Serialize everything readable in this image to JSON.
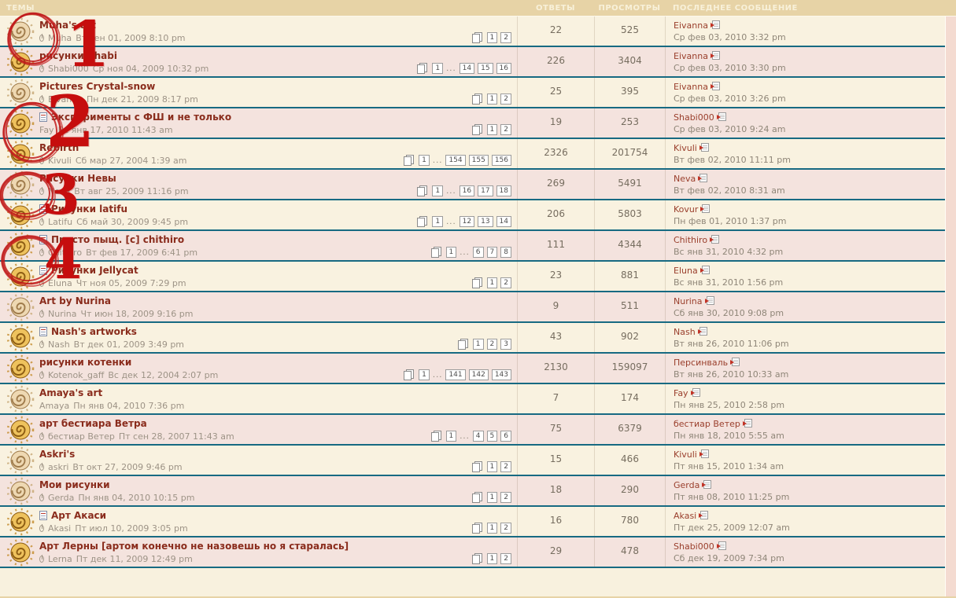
{
  "header": {
    "topics": "ТЕМЫ",
    "replies": "ОТВЕТЫ",
    "views": "ПРОСМОТРЫ",
    "last_post": "ПОСЛЕДНЕЕ СООБЩЕНИЕ"
  },
  "colors": {
    "header_bg": "#e7d3a6",
    "row_light": "#f9f2e0",
    "row_pink": "#f4e3de",
    "row_separator": "#176a82",
    "topic_title": "#8a2c1c",
    "annotation_red": "#c60e0e",
    "side_strip": "#f4dbd1"
  },
  "topics": [
    {
      "title": "Muha's art",
      "has_new_post_icon": false,
      "has_attachment": true,
      "author": "Muha",
      "posted": "Вт сен 01, 2009 8:10 pm",
      "pages": [
        "1",
        "2"
      ],
      "replies": "22",
      "views": "525",
      "last_post": {
        "author": "Eivanna",
        "date": "Ср фев 03, 2010 3:32 pm"
      },
      "icon": "dim"
    },
    {
      "title": "рисунки Shabi",
      "has_new_post_icon": false,
      "has_attachment": true,
      "author": "Shabi000",
      "posted": "Ср ноя 04, 2009 10:32 pm",
      "pages": [
        "1",
        "...",
        "14",
        "15",
        "16"
      ],
      "replies": "226",
      "views": "3404",
      "last_post": {
        "author": "Eivanna",
        "date": "Ср фев 03, 2010 3:30 pm"
      },
      "icon": "hot"
    },
    {
      "title": "Pictures Crystal-snow",
      "has_new_post_icon": false,
      "has_attachment": true,
      "author": "Eivanna",
      "posted": "Пн дек 21, 2009 8:17 pm",
      "pages": [
        "1",
        "2"
      ],
      "replies": "25",
      "views": "395",
      "last_post": {
        "author": "Eivanna",
        "date": "Ср фев 03, 2010 3:26 pm"
      },
      "icon": "dim"
    },
    {
      "title": "Эксперименты с ФШ и не только",
      "has_new_post_icon": true,
      "has_attachment": false,
      "author": "Fay",
      "posted": "Вс янв 17, 2010 11:43 am",
      "pages": [
        "1",
        "2"
      ],
      "replies": "19",
      "views": "253",
      "last_post": {
        "author": "Shabi000",
        "date": "Ср фев 03, 2010 9:24 am"
      },
      "icon": "hot"
    },
    {
      "title": "Rebirth",
      "has_new_post_icon": false,
      "has_attachment": true,
      "author": "Kivuli",
      "posted": "Сб мар 27, 2004 1:39 am",
      "pages": [
        "1",
        "...",
        "154",
        "155",
        "156"
      ],
      "replies": "2326",
      "views": "201754",
      "last_post": {
        "author": "Kivuli",
        "date": "Вт фев 02, 2010 11:11 pm"
      },
      "icon": "hot"
    },
    {
      "title": "Рисунки Невы",
      "has_new_post_icon": false,
      "has_attachment": true,
      "author": "Neva",
      "posted": "Вт авг 25, 2009 11:16 pm",
      "pages": [
        "1",
        "...",
        "16",
        "17",
        "18"
      ],
      "replies": "269",
      "views": "5491",
      "last_post": {
        "author": "Neva",
        "date": "Вт фев 02, 2010 8:31 am"
      },
      "icon": "dim"
    },
    {
      "title": "Рисунки latifu",
      "has_new_post_icon": true,
      "has_attachment": true,
      "author": "Latifu",
      "posted": "Сб май 30, 2009 9:45 pm",
      "pages": [
        "1",
        "...",
        "12",
        "13",
        "14"
      ],
      "replies": "206",
      "views": "5803",
      "last_post": {
        "author": "Kovur",
        "date": "Пн фев 01, 2010 1:37 pm"
      },
      "icon": "hot"
    },
    {
      "title": "Просто пыщ. [c] chithiro",
      "has_new_post_icon": true,
      "has_attachment": true,
      "author": "Chithiro",
      "posted": "Вт фев 17, 2009 6:41 pm",
      "pages": [
        "1",
        "...",
        "6",
        "7",
        "8"
      ],
      "replies": "111",
      "views": "4344",
      "last_post": {
        "author": "Chithiro",
        "date": "Вс янв 31, 2010 4:32 pm"
      },
      "icon": "hot"
    },
    {
      "title": "Рисунки Jellycat",
      "has_new_post_icon": true,
      "has_attachment": true,
      "author": "Eluna",
      "posted": "Чт ноя 05, 2009 7:29 pm",
      "pages": [
        "1",
        "2"
      ],
      "replies": "23",
      "views": "881",
      "last_post": {
        "author": "Eluna",
        "date": "Вс янв 31, 2010 1:56 pm"
      },
      "icon": "hot"
    },
    {
      "title": "Art by Nurina",
      "has_new_post_icon": false,
      "has_attachment": true,
      "author": "Nurina",
      "posted": "Чт июн 18, 2009 9:16 pm",
      "pages": [],
      "replies": "9",
      "views": "511",
      "last_post": {
        "author": "Nurina",
        "date": "Сб янв 30, 2010 9:08 pm"
      },
      "icon": "dim"
    },
    {
      "title": "Nash's artworks",
      "has_new_post_icon": true,
      "has_attachment": true,
      "author": "Nash",
      "posted": "Вт дек 01, 2009 3:49 pm",
      "pages": [
        "1",
        "2",
        "3"
      ],
      "replies": "43",
      "views": "902",
      "last_post": {
        "author": "Nash",
        "date": "Вт янв 26, 2010 11:06 pm"
      },
      "icon": "hot"
    },
    {
      "title": "рисунки котенки",
      "has_new_post_icon": false,
      "has_attachment": true,
      "author": "Kotenok_gaff",
      "posted": "Вс дек 12, 2004 2:07 pm",
      "pages": [
        "1",
        "...",
        "141",
        "142",
        "143"
      ],
      "replies": "2130",
      "views": "159097",
      "last_post": {
        "author": "Персинваль",
        "date": "Вт янв 26, 2010 10:33 am"
      },
      "icon": "hot"
    },
    {
      "title": "Amaya's art",
      "has_new_post_icon": false,
      "has_attachment": false,
      "author": "Amaya",
      "posted": "Пн янв 04, 2010 7:36 pm",
      "pages": [],
      "replies": "7",
      "views": "174",
      "last_post": {
        "author": "Fay",
        "date": "Пн янв 25, 2010 2:58 pm"
      },
      "icon": "dim"
    },
    {
      "title": "арт бестиара Ветра",
      "has_new_post_icon": false,
      "has_attachment": true,
      "author": "бестиар Ветер",
      "posted": "Пт сен 28, 2007 11:43 am",
      "pages": [
        "1",
        "...",
        "4",
        "5",
        "6"
      ],
      "replies": "75",
      "views": "6379",
      "last_post": {
        "author": "бестиар Ветер",
        "date": "Пн янв 18, 2010 5:55 am"
      },
      "icon": "hot"
    },
    {
      "title": "Askri's",
      "has_new_post_icon": false,
      "has_attachment": true,
      "author": "askri",
      "posted": "Вт окт 27, 2009 9:46 pm",
      "pages": [
        "1",
        "2"
      ],
      "replies": "15",
      "views": "466",
      "last_post": {
        "author": "Kivuli",
        "date": "Пт янв 15, 2010 1:34 am"
      },
      "icon": "dim"
    },
    {
      "title": "Мои рисунки",
      "has_new_post_icon": false,
      "has_attachment": true,
      "author": "Gerda",
      "posted": "Пн янв 04, 2010 10:15 pm",
      "pages": [
        "1",
        "2"
      ],
      "replies": "18",
      "views": "290",
      "last_post": {
        "author": "Gerda",
        "date": "Пт янв 08, 2010 11:25 pm"
      },
      "icon": "dim"
    },
    {
      "title": "Арт Акаси",
      "has_new_post_icon": true,
      "has_attachment": true,
      "author": "Akasi",
      "posted": "Пт июл 10, 2009 3:05 pm",
      "pages": [
        "1",
        "2"
      ],
      "replies": "16",
      "views": "780",
      "last_post": {
        "author": "Akasi",
        "date": "Пт дек 25, 2009 12:07 am"
      },
      "icon": "hot"
    },
    {
      "title": "Арт Лерны [артом конечно не назовешь но я старалась]",
      "has_new_post_icon": false,
      "has_attachment": true,
      "author": "Lerna",
      "posted": "Пт дек 11, 2009 12:49 pm",
      "pages": [
        "1",
        "2"
      ],
      "replies": "29",
      "views": "478",
      "last_post": {
        "author": "Shabi000",
        "date": "Сб дек 19, 2009 7:34 pm"
      },
      "icon": "hot"
    }
  ],
  "annotations": [
    {
      "label": "1"
    },
    {
      "label": "2"
    },
    {
      "label": "3"
    },
    {
      "label": "4"
    }
  ]
}
